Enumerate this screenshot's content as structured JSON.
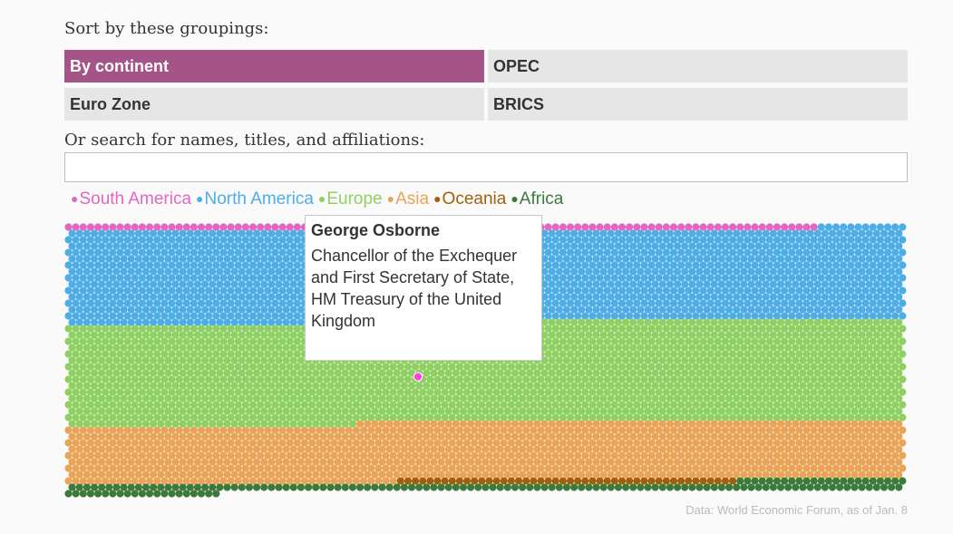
{
  "sort_prompt": "Sort by these groupings:",
  "groupings": [
    {
      "id": "continent",
      "label": "By continent",
      "active": true
    },
    {
      "id": "opec",
      "label": "OPEC",
      "active": false
    },
    {
      "id": "euro",
      "label": "Euro Zone",
      "active": false
    },
    {
      "id": "brics",
      "label": "BRICS",
      "active": false
    }
  ],
  "search_prompt": "Or search for names, titles, and affiliations:",
  "search": {
    "value": "",
    "placeholder": ""
  },
  "legend": [
    {
      "label": "South America",
      "color": "#e067c2"
    },
    {
      "label": "North America",
      "color": "#4fade6"
    },
    {
      "label": "Europe",
      "color": "#8fd062"
    },
    {
      "label": "Asia",
      "color": "#e9a457"
    },
    {
      "label": "Oceania",
      "color": "#a45f0c"
    },
    {
      "label": "Africa",
      "color": "#3b7a3b"
    }
  ],
  "highlight_color": "#ff44dd",
  "tooltip": {
    "name": "George Osborne",
    "title": "Chancellor of the Exchequer and First Secretary of State, HM Treasury of the United Kingdom"
  },
  "credit": "Data: World Economic Forum, as of Jan. 8"
}
